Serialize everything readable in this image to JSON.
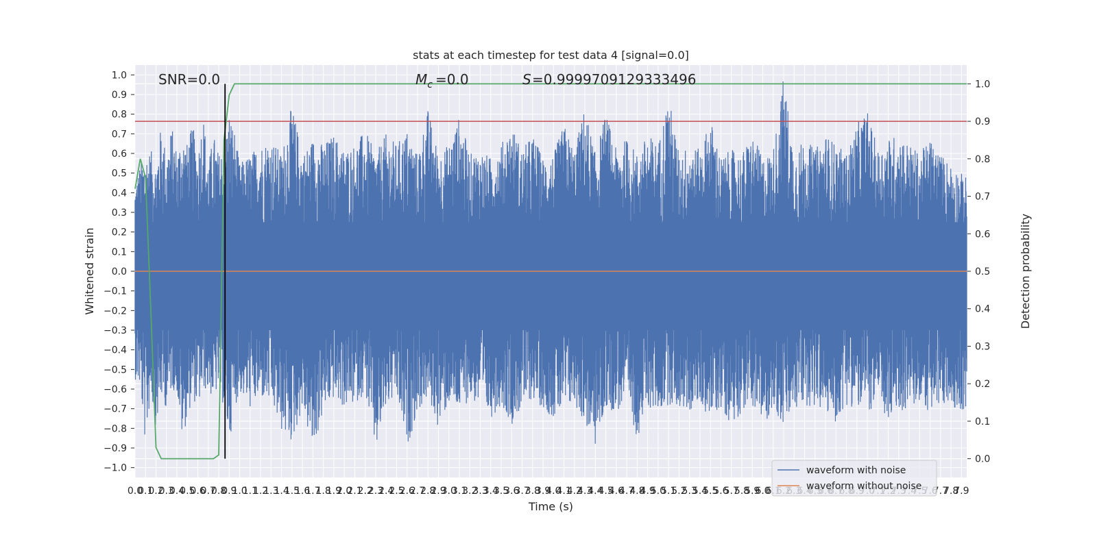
{
  "chart_data": {
    "type": "line",
    "title": "stats at each timestep for test data 4 [signal=0.0]",
    "xlabel": "Time (s)",
    "ylabel": "Whitened strain",
    "ylabel_right": "Detection probability",
    "xlim": [
      0.0,
      7.95
    ],
    "ylim": [
      -1.05,
      1.05
    ],
    "ylim_right": [
      -0.05,
      1.05
    ],
    "grid": true,
    "legend_position": "lower right",
    "annotations": {
      "snr": "SNR=0.0",
      "mc": "=0.0",
      "s": "=0.9999709129333496"
    },
    "xtick_labels": [
      "0.0",
      "0.1",
      "0.2",
      "0.3",
      "0.4",
      "0.5",
      "0.6",
      "0.7",
      "0.8",
      "0.9",
      "1.0",
      "1.1",
      "1.2",
      "1.3",
      "1.4",
      "1.5",
      "1.6",
      "1.7",
      "1.8",
      "1.9",
      "2.0",
      "2.1",
      "2.2",
      "2.3",
      "2.4",
      "2.5",
      "2.6",
      "2.7",
      "2.8",
      "2.9",
      "3.0",
      "3.1",
      "3.2",
      "3.3",
      "3.4",
      "3.5",
      "3.6",
      "3.7",
      "3.8",
      "3.9",
      "4.0",
      "4.1",
      "4.2",
      "4.3",
      "4.4",
      "4.5",
      "4.6",
      "4.7",
      "4.8",
      "4.9",
      "5.0",
      "5.1",
      "5.2",
      "5.3",
      "5.4",
      "5.5",
      "5.6",
      "5.7",
      "5.8",
      "5.9",
      "6.0",
      "6.1",
      "6.2",
      "6.3",
      "6.4",
      "6.5",
      "6.6",
      "6.7",
      "6.8",
      "6.9",
      "7.0",
      "7.1",
      "7.2",
      "7.3",
      "7.4",
      "7.5",
      "7.6",
      "7.7",
      "7.8",
      "7.9"
    ],
    "ytick_labels": [
      "1.0",
      "0.9",
      "0.8",
      "0.7",
      "0.6",
      "0.5",
      "0.4",
      "0.3",
      "0.2",
      "0.1",
      "0.0",
      "−0.1",
      "−0.2",
      "−0.3",
      "−0.4",
      "−0.5",
      "−0.6",
      "−0.7",
      "−0.8",
      "−0.9",
      "−1.0"
    ],
    "ytick_right_labels": [
      "1.0",
      "0.9",
      "0.8",
      "0.7",
      "0.6",
      "0.5",
      "0.4",
      "0.3",
      "0.2",
      "0.1",
      "0.0"
    ],
    "series": [
      {
        "name": "waveform with noise",
        "color": "#4c72b0",
        "axis": "left",
        "envelope_x": [
          0.0,
          0.05,
          0.1,
          0.15,
          0.2,
          0.25,
          0.3,
          0.35,
          0.4,
          0.45,
          0.5,
          0.55,
          0.6,
          0.65,
          0.7,
          0.75,
          0.8,
          0.85,
          0.9,
          0.95,
          1.0,
          1.1,
          1.2,
          1.3,
          1.4,
          1.5,
          1.6,
          1.7,
          1.8,
          1.9,
          2.0,
          2.1,
          2.2,
          2.3,
          2.4,
          2.5,
          2.6,
          2.7,
          2.8,
          2.9,
          3.0,
          3.1,
          3.2,
          3.3,
          3.4,
          3.5,
          3.6,
          3.7,
          3.8,
          3.9,
          4.0,
          4.1,
          4.2,
          4.3,
          4.4,
          4.5,
          4.6,
          4.7,
          4.8,
          4.9,
          5.0,
          5.1,
          5.2,
          5.3,
          5.4,
          5.5,
          5.6,
          5.7,
          5.8,
          5.9,
          6.0,
          6.1,
          6.2,
          6.3,
          6.4,
          6.5,
          6.6,
          6.7,
          6.8,
          6.9,
          7.0,
          7.1,
          7.2,
          7.3,
          7.4,
          7.5,
          7.6,
          7.7,
          7.8,
          7.9,
          7.95
        ],
        "envelope_max": [
          0.45,
          0.55,
          0.6,
          0.62,
          0.55,
          0.75,
          0.6,
          0.74,
          0.62,
          0.7,
          0.65,
          0.75,
          0.6,
          0.82,
          0.55,
          0.7,
          0.6,
          0.65,
          0.82,
          0.72,
          0.55,
          0.6,
          0.65,
          0.68,
          0.6,
          0.85,
          0.6,
          0.68,
          0.65,
          0.7,
          0.62,
          0.65,
          0.72,
          0.6,
          0.7,
          0.65,
          0.72,
          0.6,
          0.83,
          0.6,
          0.65,
          0.79,
          0.6,
          0.62,
          0.58,
          0.65,
          0.75,
          0.62,
          0.7,
          0.58,
          0.6,
          0.75,
          0.62,
          0.84,
          0.6,
          0.81,
          0.62,
          0.68,
          0.6,
          0.7,
          0.65,
          0.9,
          0.6,
          0.65,
          0.62,
          0.78,
          0.58,
          0.62,
          0.6,
          0.7,
          0.58,
          0.62,
          1.0,
          0.6,
          0.68,
          0.62,
          0.7,
          0.65,
          0.6,
          0.75,
          0.82,
          0.62,
          0.68,
          0.7,
          0.65,
          0.6,
          0.68,
          0.6,
          0.55,
          0.5,
          0.48
        ],
        "envelope_min": [
          -0.55,
          -0.6,
          -0.9,
          -0.62,
          -0.8,
          -0.65,
          -0.7,
          -0.6,
          -0.62,
          -0.86,
          -0.75,
          -0.65,
          -0.7,
          -0.6,
          -0.62,
          -0.65,
          -0.6,
          -0.7,
          -0.88,
          -0.7,
          -0.62,
          -0.7,
          -0.65,
          -0.68,
          -0.82,
          -0.88,
          -0.7,
          -0.93,
          -0.72,
          -0.65,
          -0.7,
          -0.68,
          -0.62,
          -0.93,
          -0.7,
          -0.65,
          -0.9,
          -0.72,
          -0.65,
          -0.8,
          -0.68,
          -0.72,
          -0.65,
          -0.7,
          -0.75,
          -0.68,
          -0.78,
          -0.7,
          -0.65,
          -0.7,
          -0.75,
          -0.72,
          -0.68,
          -0.78,
          -0.9,
          -0.7,
          -0.72,
          -0.68,
          -0.85,
          -0.7,
          -0.72,
          -0.68,
          -0.7,
          -0.72,
          -0.68,
          -0.75,
          -0.7,
          -0.78,
          -0.72,
          -0.68,
          -0.8,
          -0.7,
          -0.8,
          -0.72,
          -0.68,
          -0.7,
          -0.72,
          -0.78,
          -0.68,
          -0.7,
          -0.72,
          -0.68,
          -0.78,
          -0.72,
          -0.7,
          -0.68,
          -0.72,
          -0.7,
          -0.68,
          -0.72,
          -0.7
        ]
      },
      {
        "name": "waveform without noise",
        "color": "#dd8452",
        "axis": "left",
        "x": [
          0.0,
          7.95
        ],
        "y": [
          0.0,
          0.0
        ]
      },
      {
        "color": "#55a868",
        "axis": "right",
        "x": [
          0.0,
          0.05,
          0.1,
          0.15,
          0.2,
          0.25,
          0.3,
          0.4,
          0.5,
          0.6,
          0.7,
          0.75,
          0.8,
          0.85,
          0.9,
          0.95,
          7.95
        ],
        "y": [
          0.72,
          0.8,
          0.75,
          0.4,
          0.03,
          0.0,
          0.0,
          0.0,
          0.0,
          0.0,
          0.0,
          0.0,
          0.01,
          0.85,
          0.97,
          1.0,
          1.0
        ]
      },
      {
        "color": "#c44e52",
        "axis": "right",
        "x": [
          0.0,
          7.95
        ],
        "y": [
          0.9,
          0.9
        ]
      },
      {
        "color": "#000000",
        "axis": "left",
        "type": "vline",
        "x": 0.86
      }
    ]
  }
}
